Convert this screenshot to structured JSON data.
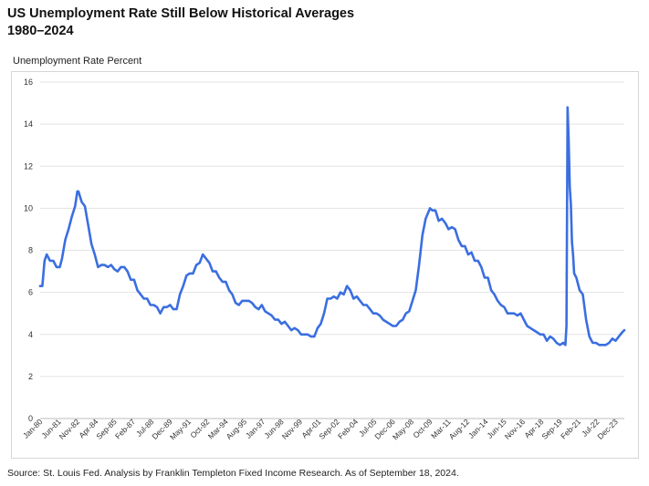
{
  "chart_data": {
    "type": "line",
    "title": "US Unemployment Rate Still Below Historical Averages",
    "subtitle": "1980–2024",
    "ylabel": "Unemployment Rate Percent",
    "xlabel": "",
    "ylim": [
      0,
      16
    ],
    "yticks": [
      0,
      2,
      4,
      6,
      8,
      10,
      12,
      14,
      16
    ],
    "grid": true,
    "x_tick_labels": [
      "Jan-80",
      "Jun-81",
      "Nov-82",
      "Apr-84",
      "Sep-85",
      "Feb-87",
      "Jul-88",
      "Dec-89",
      "May-91",
      "Oct-92",
      "Mar-94",
      "Aug-95",
      "Jan-97",
      "Jun-98",
      "Nov-99",
      "Apr-01",
      "Sep-02",
      "Feb-04",
      "Jul-05",
      "Dec-06",
      "May-08",
      "Oct-09",
      "Mar-11",
      "Aug-12",
      "Jan-14",
      "Jun-15",
      "Nov-16",
      "Apr-18",
      "Sep-19",
      "Feb-21",
      "Jul-22",
      "Dec-23"
    ],
    "series": [
      {
        "color": "#3b6ee0",
        "points": [
          [
            "1980-01",
            6.3
          ],
          [
            "1980-03",
            6.3
          ],
          [
            "1980-05",
            7.5
          ],
          [
            "1980-07",
            7.8
          ],
          [
            "1980-10",
            7.5
          ],
          [
            "1981-01",
            7.5
          ],
          [
            "1981-04",
            7.2
          ],
          [
            "1981-07",
            7.2
          ],
          [
            "1981-09",
            7.6
          ],
          [
            "1981-12",
            8.5
          ],
          [
            "1982-03",
            9.0
          ],
          [
            "1982-06",
            9.6
          ],
          [
            "1982-09",
            10.1
          ],
          [
            "1982-11",
            10.8
          ],
          [
            "1982-12",
            10.8
          ],
          [
            "1983-03",
            10.3
          ],
          [
            "1983-06",
            10.1
          ],
          [
            "1983-09",
            9.2
          ],
          [
            "1983-12",
            8.3
          ],
          [
            "1984-03",
            7.8
          ],
          [
            "1984-06",
            7.2
          ],
          [
            "1984-09",
            7.3
          ],
          [
            "1984-12",
            7.3
          ],
          [
            "1985-03",
            7.2
          ],
          [
            "1985-06",
            7.3
          ],
          [
            "1985-09",
            7.1
          ],
          [
            "1985-12",
            7.0
          ],
          [
            "1986-03",
            7.2
          ],
          [
            "1986-06",
            7.2
          ],
          [
            "1986-09",
            7.0
          ],
          [
            "1986-12",
            6.6
          ],
          [
            "1987-03",
            6.6
          ],
          [
            "1987-06",
            6.1
          ],
          [
            "1987-09",
            5.9
          ],
          [
            "1987-12",
            5.7
          ],
          [
            "1988-03",
            5.7
          ],
          [
            "1988-06",
            5.4
          ],
          [
            "1988-09",
            5.4
          ],
          [
            "1988-12",
            5.3
          ],
          [
            "1989-03",
            5.0
          ],
          [
            "1989-06",
            5.3
          ],
          [
            "1989-09",
            5.3
          ],
          [
            "1989-12",
            5.4
          ],
          [
            "1990-03",
            5.2
          ],
          [
            "1990-06",
            5.2
          ],
          [
            "1990-09",
            5.9
          ],
          [
            "1990-12",
            6.3
          ],
          [
            "1991-03",
            6.8
          ],
          [
            "1991-06",
            6.9
          ],
          [
            "1991-09",
            6.9
          ],
          [
            "1991-12",
            7.3
          ],
          [
            "1992-03",
            7.4
          ],
          [
            "1992-06",
            7.8
          ],
          [
            "1992-09",
            7.6
          ],
          [
            "1992-12",
            7.4
          ],
          [
            "1993-03",
            7.0
          ],
          [
            "1993-06",
            7.0
          ],
          [
            "1993-09",
            6.7
          ],
          [
            "1993-12",
            6.5
          ],
          [
            "1994-03",
            6.5
          ],
          [
            "1994-06",
            6.1
          ],
          [
            "1994-09",
            5.9
          ],
          [
            "1994-12",
            5.5
          ],
          [
            "1995-03",
            5.4
          ],
          [
            "1995-06",
            5.6
          ],
          [
            "1995-09",
            5.6
          ],
          [
            "1995-12",
            5.6
          ],
          [
            "1996-03",
            5.5
          ],
          [
            "1996-06",
            5.3
          ],
          [
            "1996-09",
            5.2
          ],
          [
            "1996-12",
            5.4
          ],
          [
            "1997-03",
            5.1
          ],
          [
            "1997-06",
            5.0
          ],
          [
            "1997-09",
            4.9
          ],
          [
            "1997-12",
            4.7
          ],
          [
            "1998-03",
            4.7
          ],
          [
            "1998-06",
            4.5
          ],
          [
            "1998-09",
            4.6
          ],
          [
            "1998-12",
            4.4
          ],
          [
            "1999-03",
            4.2
          ],
          [
            "1999-06",
            4.3
          ],
          [
            "1999-09",
            4.2
          ],
          [
            "1999-12",
            4.0
          ],
          [
            "2000-03",
            4.0
          ],
          [
            "2000-06",
            4.0
          ],
          [
            "2000-09",
            3.9
          ],
          [
            "2000-12",
            3.9
          ],
          [
            "2001-03",
            4.3
          ],
          [
            "2001-06",
            4.5
          ],
          [
            "2001-09",
            5.0
          ],
          [
            "2001-12",
            5.7
          ],
          [
            "2002-03",
            5.7
          ],
          [
            "2002-06",
            5.8
          ],
          [
            "2002-09",
            5.7
          ],
          [
            "2002-12",
            6.0
          ],
          [
            "2003-03",
            5.9
          ],
          [
            "2003-06",
            6.3
          ],
          [
            "2003-09",
            6.1
          ],
          [
            "2003-12",
            5.7
          ],
          [
            "2004-03",
            5.8
          ],
          [
            "2004-06",
            5.6
          ],
          [
            "2004-09",
            5.4
          ],
          [
            "2004-12",
            5.4
          ],
          [
            "2005-03",
            5.2
          ],
          [
            "2005-06",
            5.0
          ],
          [
            "2005-09",
            5.0
          ],
          [
            "2005-12",
            4.9
          ],
          [
            "2006-03",
            4.7
          ],
          [
            "2006-06",
            4.6
          ],
          [
            "2006-09",
            4.5
          ],
          [
            "2006-12",
            4.4
          ],
          [
            "2007-03",
            4.4
          ],
          [
            "2007-06",
            4.6
          ],
          [
            "2007-09",
            4.7
          ],
          [
            "2007-12",
            5.0
          ],
          [
            "2008-03",
            5.1
          ],
          [
            "2008-06",
            5.6
          ],
          [
            "2008-09",
            6.1
          ],
          [
            "2008-12",
            7.3
          ],
          [
            "2009-03",
            8.7
          ],
          [
            "2009-06",
            9.5
          ],
          [
            "2009-10",
            10.0
          ],
          [
            "2009-12",
            9.9
          ],
          [
            "2010-03",
            9.9
          ],
          [
            "2010-06",
            9.4
          ],
          [
            "2010-09",
            9.5
          ],
          [
            "2010-12",
            9.3
          ],
          [
            "2011-03",
            9.0
          ],
          [
            "2011-06",
            9.1
          ],
          [
            "2011-09",
            9.0
          ],
          [
            "2011-12",
            8.5
          ],
          [
            "2012-03",
            8.2
          ],
          [
            "2012-06",
            8.2
          ],
          [
            "2012-09",
            7.8
          ],
          [
            "2012-12",
            7.9
          ],
          [
            "2013-03",
            7.5
          ],
          [
            "2013-06",
            7.5
          ],
          [
            "2013-09",
            7.2
          ],
          [
            "2013-12",
            6.7
          ],
          [
            "2014-03",
            6.7
          ],
          [
            "2014-06",
            6.1
          ],
          [
            "2014-09",
            5.9
          ],
          [
            "2014-12",
            5.6
          ],
          [
            "2015-03",
            5.4
          ],
          [
            "2015-06",
            5.3
          ],
          [
            "2015-09",
            5.0
          ],
          [
            "2015-12",
            5.0
          ],
          [
            "2016-03",
            5.0
          ],
          [
            "2016-06",
            4.9
          ],
          [
            "2016-09",
            5.0
          ],
          [
            "2016-12",
            4.7
          ],
          [
            "2017-03",
            4.4
          ],
          [
            "2017-06",
            4.3
          ],
          [
            "2017-09",
            4.2
          ],
          [
            "2017-12",
            4.1
          ],
          [
            "2018-03",
            4.0
          ],
          [
            "2018-06",
            4.0
          ],
          [
            "2018-09",
            3.7
          ],
          [
            "2018-12",
            3.9
          ],
          [
            "2019-03",
            3.8
          ],
          [
            "2019-06",
            3.6
          ],
          [
            "2019-09",
            3.5
          ],
          [
            "2019-12",
            3.6
          ],
          [
            "2020-02",
            3.5
          ],
          [
            "2020-03",
            4.4
          ],
          [
            "2020-04",
            14.8
          ],
          [
            "2020-05",
            13.2
          ],
          [
            "2020-06",
            11.0
          ],
          [
            "2020-07",
            10.2
          ],
          [
            "2020-08",
            8.4
          ],
          [
            "2020-09",
            7.8
          ],
          [
            "2020-10",
            6.9
          ],
          [
            "2020-12",
            6.7
          ],
          [
            "2021-03",
            6.1
          ],
          [
            "2021-06",
            5.9
          ],
          [
            "2021-09",
            4.7
          ],
          [
            "2021-12",
            3.9
          ],
          [
            "2022-03",
            3.6
          ],
          [
            "2022-06",
            3.6
          ],
          [
            "2022-09",
            3.5
          ],
          [
            "2022-12",
            3.5
          ],
          [
            "2023-03",
            3.5
          ],
          [
            "2023-06",
            3.6
          ],
          [
            "2023-09",
            3.8
          ],
          [
            "2023-12",
            3.7
          ],
          [
            "2024-03",
            3.9
          ],
          [
            "2024-06",
            4.1
          ],
          [
            "2024-08",
            4.2
          ]
        ]
      }
    ]
  },
  "source_note": "Source: St. Louis Fed. Analysis by Franklin Templeton Fixed Income Research. As of September 18, 2024."
}
